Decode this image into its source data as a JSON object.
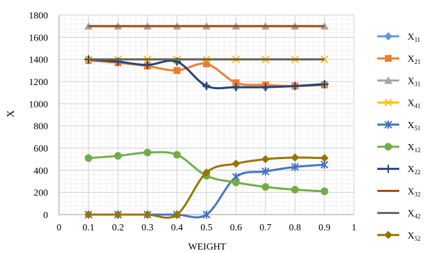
{
  "chart_data": {
    "type": "line",
    "xlabel": "WEIGHT",
    "ylabel": "X",
    "xlim": [
      0,
      1
    ],
    "ylim": [
      0,
      1800
    ],
    "xticks": [
      0,
      0.1,
      0.2,
      0.3,
      0.4,
      0.5,
      0.6,
      0.7,
      0.8,
      0.9,
      1
    ],
    "xtick_labels": [
      "0",
      "0.1",
      "0.2",
      "0.3",
      "0.4",
      "0.5",
      "0.6",
      "0.7",
      "0.8",
      "0.9",
      "1"
    ],
    "yticks": [
      0,
      200,
      400,
      600,
      800,
      1000,
      1200,
      1400,
      1600,
      1800
    ],
    "ytick_labels": [
      "0",
      "200",
      "400",
      "600",
      "800",
      "1000",
      "1200",
      "1400",
      "1600",
      "1800"
    ],
    "grid": true,
    "legend_position": "right",
    "x": [
      0.1,
      0.2,
      0.3,
      0.4,
      0.5,
      0.6,
      0.7,
      0.8,
      0.9
    ],
    "series": [
      {
        "name": "X11",
        "base": "X",
        "sub": "11",
        "color": "#5B9BD5",
        "marker": "diamond",
        "values": [
          1400,
          1380,
          1350,
          1380,
          1160,
          1150,
          1150,
          1160,
          1180
        ]
      },
      {
        "name": "X21",
        "base": "X",
        "sub": "21",
        "color": "#ED7D31",
        "marker": "square",
        "values": [
          1390,
          1370,
          1340,
          1300,
          1360,
          1190,
          1170,
          1160,
          1170
        ]
      },
      {
        "name": "X31",
        "base": "X",
        "sub": "31",
        "color": "#A5A5A5",
        "marker": "triangle",
        "values": [
          1700,
          1700,
          1700,
          1700,
          1700,
          1700,
          1700,
          1700,
          1700
        ]
      },
      {
        "name": "X41",
        "base": "X",
        "sub": "41",
        "color": "#FFC000",
        "marker": "x",
        "values": [
          1400,
          1400,
          1400,
          1400,
          1400,
          1400,
          1400,
          1400,
          1400
        ]
      },
      {
        "name": "X51",
        "base": "X",
        "sub": "51",
        "color": "#4472C4",
        "marker": "star",
        "values": [
          0,
          0,
          0,
          0,
          0,
          340,
          390,
          430,
          450
        ]
      },
      {
        "name": "X12",
        "base": "X",
        "sub": "12",
        "color": "#70AD47",
        "marker": "circle",
        "values": [
          510,
          530,
          560,
          540,
          350,
          290,
          250,
          225,
          210
        ]
      },
      {
        "name": "X22",
        "base": "X",
        "sub": "22",
        "color": "#264478",
        "marker": "plus",
        "values": [
          1400,
          1380,
          1350,
          1380,
          1160,
          1150,
          1150,
          1160,
          1175
        ]
      },
      {
        "name": "X32",
        "base": "X",
        "sub": "32",
        "color": "#9E480E",
        "marker": "none",
        "values": [
          1700,
          1700,
          1700,
          1700,
          1700,
          1700,
          1700,
          1700,
          1700
        ]
      },
      {
        "name": "X42",
        "base": "X",
        "sub": "42",
        "color": "#636363",
        "marker": "none",
        "values": [
          1400,
          1400,
          1400,
          1400,
          1400,
          1400,
          1400,
          1400,
          1400
        ]
      },
      {
        "name": "X52",
        "base": "X",
        "sub": "52",
        "color": "#997300",
        "marker": "diamond",
        "values": [
          0,
          0,
          0,
          0,
          380,
          460,
          500,
          515,
          510
        ]
      }
    ]
  }
}
